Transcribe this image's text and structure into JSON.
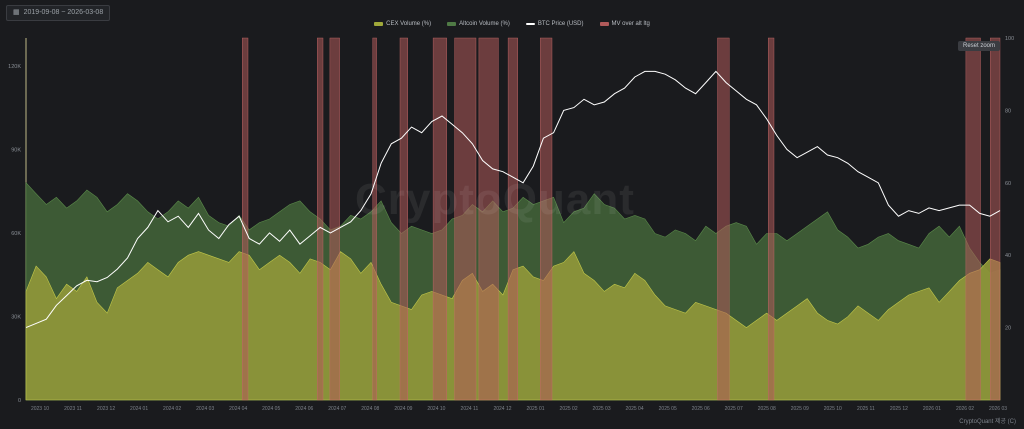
{
  "header": {
    "date_range": "2019-09-08 ~ 2026-03-08",
    "calendar_icon": "calendar-icon"
  },
  "controls": {
    "reset_zoom": "Reset zoom"
  },
  "watermark": "CryptoQuant",
  "credit": "CryptoQuant 제공 (C)",
  "colors": {
    "cex": "#a0a93a",
    "altcoin": "#3d5a35",
    "btc_line": "#ffffff",
    "bar": "#9a4a4a",
    "bg": "#1a1b1e"
  },
  "chart_data": {
    "type": "area",
    "title": "",
    "legend": [
      "CEX Volume (%)",
      "Altcoin Volume (%)",
      "BTC Price (USD)",
      "MV over alt ltg"
    ],
    "legend_position": "top-center",
    "grid": false,
    "x_ticks": [
      "2023 10",
      "2023 11",
      "2023 12",
      "2024 01",
      "2024 02",
      "2024 03",
      "2024 04",
      "2024 05",
      "2024 06",
      "2024 07",
      "2024 08",
      "2024 09",
      "2024 10",
      "2024 11",
      "2024 12",
      "2025 01",
      "2025 02",
      "2025 03",
      "2025 04",
      "2025 05",
      "2025 06",
      "2025 07",
      "2025 08",
      "2025 09",
      "2025 10",
      "2025 11",
      "2025 12",
      "2026 01",
      "2026 02",
      "2026 03"
    ],
    "y_left": {
      "ticks": [
        "0",
        "30K",
        "60K",
        "90K",
        "120K"
      ],
      "range": [
        0,
        130000
      ]
    },
    "y_right": {
      "ticks": [
        "20",
        "40",
        "60",
        "80",
        "100"
      ],
      "range": [
        0,
        100
      ]
    },
    "series": [
      {
        "name": "Altcoin Volume (%)",
        "axis": "right",
        "type": "area",
        "values": [
          60,
          57,
          54,
          56,
          53,
          55,
          58,
          56,
          52,
          54,
          57,
          55,
          52,
          50,
          52,
          55,
          53,
          56,
          51,
          49,
          48,
          51,
          47,
          49,
          50,
          52,
          54,
          55,
          52,
          50,
          47,
          48,
          51,
          50,
          52,
          55,
          49,
          46,
          48,
          47,
          46,
          47,
          50,
          51,
          54,
          52,
          55,
          52,
          53,
          56,
          54,
          55,
          56,
          49,
          52,
          53,
          57,
          54,
          53,
          50,
          51,
          50,
          46,
          45,
          47,
          46,
          44,
          48,
          46,
          48,
          49,
          48,
          43,
          46,
          46,
          44,
          46,
          48,
          50,
          52,
          47,
          45,
          42,
          43,
          45,
          46,
          44,
          43,
          42,
          46,
          48,
          45,
          48,
          42,
          38,
          35,
          36
        ]
      },
      {
        "name": "CEX Volume (%)",
        "axis": "right",
        "type": "area",
        "values": [
          30,
          37,
          34,
          28,
          32,
          30,
          34,
          27,
          24,
          31,
          33,
          35,
          38,
          36,
          34,
          38,
          40,
          41,
          40,
          39,
          38,
          41,
          40,
          36,
          38,
          40,
          38,
          35,
          39,
          38,
          36,
          41,
          39,
          35,
          38,
          32,
          27,
          26,
          25,
          29,
          30,
          29,
          28,
          33,
          35,
          30,
          32,
          29,
          36,
          37,
          34,
          33,
          37,
          38,
          41,
          35,
          33,
          30,
          32,
          31,
          35,
          33,
          29,
          26,
          25,
          24,
          27,
          26,
          25,
          24,
          22,
          20,
          22,
          24,
          22,
          24,
          26,
          28,
          24,
          22,
          21,
          23,
          26,
          24,
          22,
          25,
          27,
          29,
          30,
          31,
          27,
          30,
          33,
          35,
          36,
          39,
          38
        ]
      },
      {
        "name": "BTC Price (USD)",
        "axis": "left",
        "type": "line",
        "values": [
          26000,
          27500,
          29000,
          34000,
          37500,
          41000,
          43000,
          42500,
          44000,
          47000,
          51000,
          58000,
          62000,
          68000,
          64000,
          66000,
          62000,
          67000,
          61000,
          58000,
          63000,
          66000,
          58000,
          56000,
          60000,
          57000,
          61000,
          56000,
          59000,
          62000,
          60000,
          62000,
          64000,
          68000,
          74000,
          85000,
          92000,
          94000,
          98000,
          96000,
          100000,
          102000,
          99000,
          96000,
          92000,
          86000,
          83000,
          82000,
          80000,
          78000,
          84000,
          94000,
          96000,
          104000,
          105000,
          108000,
          106000,
          107000,
          110000,
          112000,
          116000,
          118000,
          118000,
          117000,
          115000,
          112000,
          110000,
          114000,
          118000,
          114000,
          111000,
          108000,
          106000,
          101000,
          95000,
          90000,
          87000,
          89000,
          91000,
          88000,
          87000,
          85000,
          82000,
          80000,
          78000,
          70000,
          66000,
          68000,
          67000,
          69000,
          68000,
          69000,
          70000,
          70000,
          67000,
          66000,
          68000
        ]
      },
      {
        "name": "MV over alt ltg",
        "axis": "right",
        "type": "bar",
        "ranges": [
          [
            0.222,
            0.228
          ],
          [
            0.299,
            0.305
          ],
          [
            0.312,
            0.322
          ],
          [
            0.356,
            0.36
          ],
          [
            0.384,
            0.392
          ],
          [
            0.418,
            0.432
          ],
          [
            0.44,
            0.462
          ],
          [
            0.465,
            0.485
          ],
          [
            0.495,
            0.505
          ],
          [
            0.528,
            0.54
          ],
          [
            0.71,
            0.722
          ],
          [
            0.762,
            0.768
          ],
          [
            0.965,
            0.98
          ],
          [
            0.99,
            1.0
          ]
        ]
      }
    ]
  }
}
